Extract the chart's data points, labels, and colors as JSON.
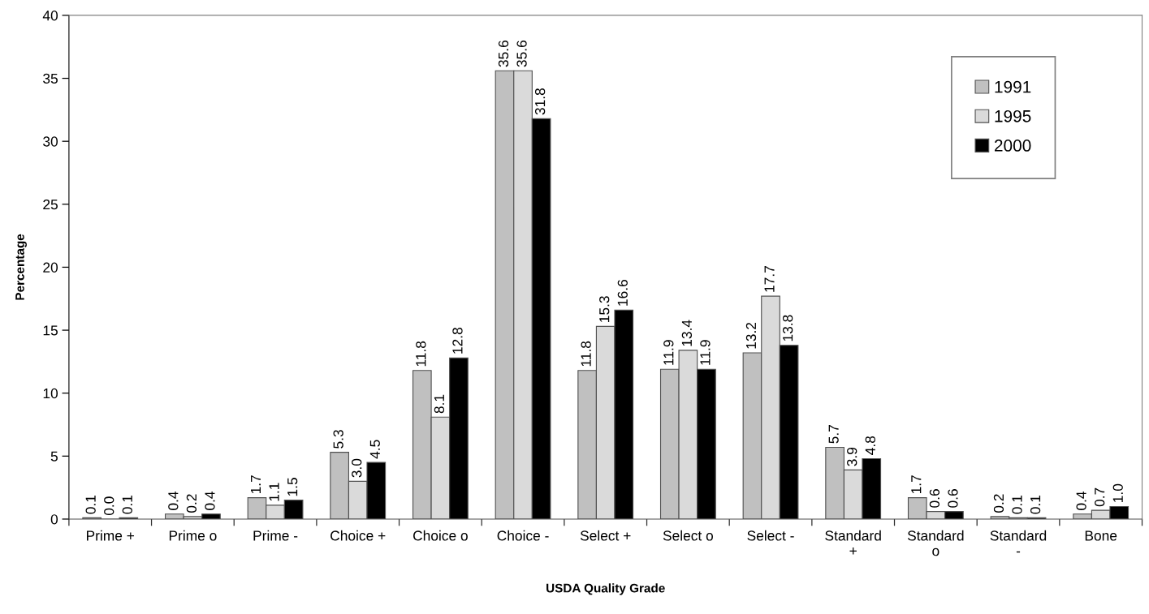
{
  "chart_data": {
    "type": "bar",
    "xlabel": "USDA Quality Grade",
    "ylabel": "Percentage",
    "categories": [
      "Prime +",
      "Prime o",
      "Prime -",
      "Choice +",
      "Choice o",
      "Choice -",
      "Select +",
      "Select o",
      "Select -",
      "Standard\n+",
      "Standard\no",
      "Standard\n-",
      "Bone"
    ],
    "series": [
      {
        "name": "1991",
        "color": "#c0c0c0",
        "values": [
          0.1,
          0.4,
          1.7,
          5.3,
          11.8,
          35.6,
          11.8,
          11.9,
          13.2,
          5.7,
          1.7,
          0.2,
          0.4
        ],
        "value_labels": [
          "0.1",
          "0.4",
          "1.7",
          "5.3",
          "11.8",
          "35.6",
          "11.8",
          "11.9",
          "13.2",
          "5.7",
          "1.7",
          "0.2",
          "0.4"
        ]
      },
      {
        "name": "1995",
        "color": "#dadada",
        "values": [
          0.0,
          0.2,
          1.1,
          3.0,
          8.1,
          35.6,
          15.3,
          13.4,
          17.7,
          3.9,
          0.6,
          0.1,
          0.7
        ],
        "value_labels": [
          "0.0",
          "0.2",
          "1.1",
          "3.0",
          "8.1",
          "35.6",
          "15.3",
          "13.4",
          "17.7",
          "3.9",
          "0.6",
          "0.1",
          "0.7"
        ]
      },
      {
        "name": "2000",
        "color": "#000000",
        "values": [
          0.1,
          0.4,
          1.5,
          4.5,
          12.8,
          31.8,
          16.6,
          11.9,
          13.8,
          4.8,
          0.6,
          0.1,
          1.0
        ],
        "value_labels": [
          "0.1",
          "0.4",
          "1.5",
          "4.5",
          "12.8",
          "31.8",
          "16.6",
          "11.9",
          "13.8",
          "4.8",
          "0.6",
          "0.1",
          "1.0"
        ]
      }
    ],
    "ylim": [
      0,
      40
    ],
    "yticks": [
      0,
      5,
      10,
      15,
      20,
      25,
      30,
      35,
      40
    ],
    "grid": false,
    "legend": "top right"
  }
}
